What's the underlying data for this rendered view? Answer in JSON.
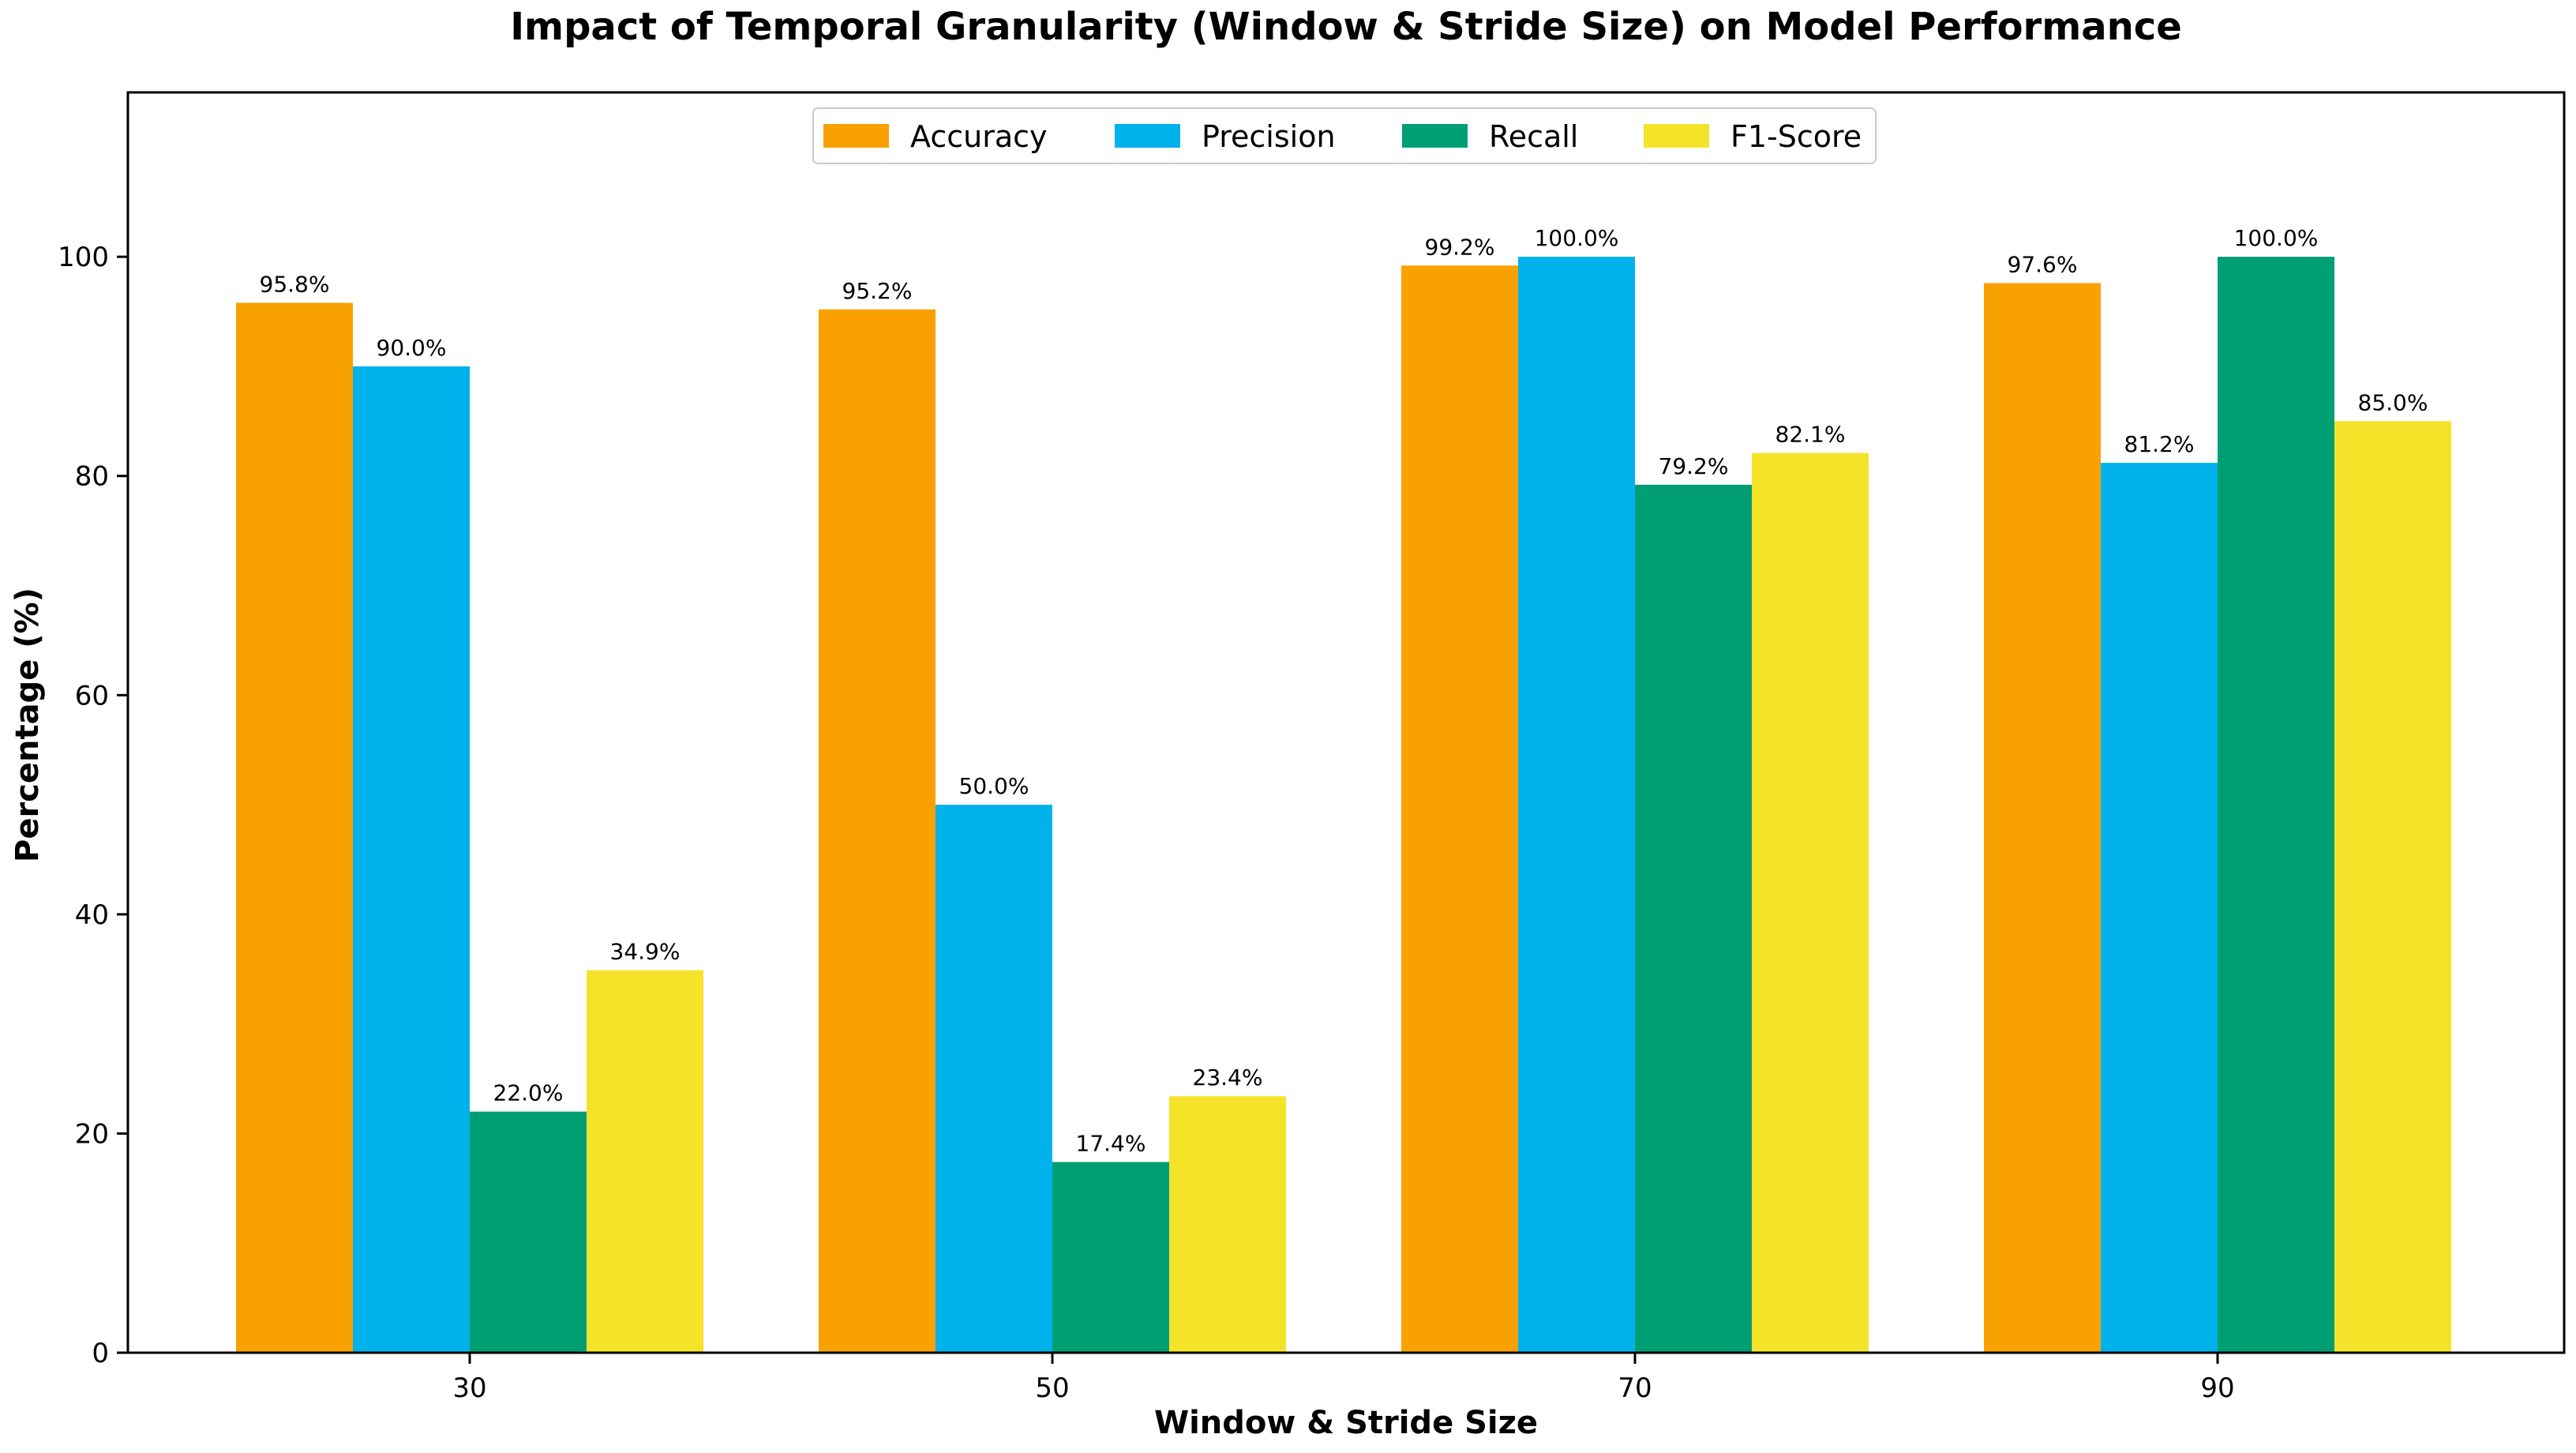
{
  "chart_data": {
    "type": "bar",
    "title": "Impact of Temporal Granularity (Window & Stride Size) on Model Performance",
    "xlabel": "Window & Stride Size",
    "ylabel": "Percentage (%)",
    "categories": [
      "30",
      "50",
      "70",
      "90"
    ],
    "ylim": [
      0,
      115
    ],
    "yticks": [
      0,
      20,
      40,
      60,
      80,
      100
    ],
    "legend_position": "top-center",
    "series": [
      {
        "name": "Accuracy",
        "color": "#F9A100",
        "values": [
          95.8,
          95.2,
          99.2,
          97.6
        ],
        "labels": [
          "95.8%",
          "95.2%",
          "99.2%",
          "97.6%"
        ]
      },
      {
        "name": "Precision",
        "color": "#00B2EB",
        "values": [
          90.0,
          50.0,
          100.0,
          81.2
        ],
        "labels": [
          "90.0%",
          "50.0%",
          "100.0%",
          "81.2%"
        ]
      },
      {
        "name": "Recall",
        "color": "#009E73",
        "values": [
          22.0,
          17.4,
          79.2,
          100.0
        ],
        "labels": [
          "22.0%",
          "17.4%",
          "79.2%",
          "100.0%"
        ]
      },
      {
        "name": "F1-Score",
        "color": "#F5E32A",
        "values": [
          34.9,
          23.4,
          82.1,
          85.0
        ],
        "labels": [
          "34.9%",
          "23.4%",
          "82.1%",
          "85.0%"
        ]
      }
    ]
  }
}
